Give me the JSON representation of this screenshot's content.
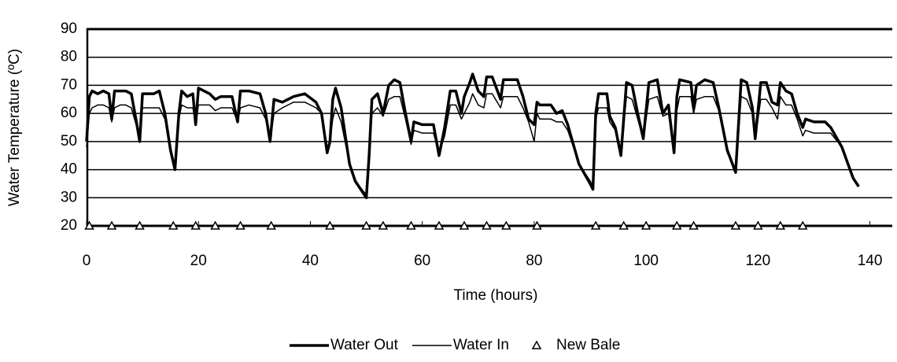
{
  "chart_data": {
    "type": "line",
    "xlabel": "Time (hours)",
    "ylabel": "Water Temperature (ºC)",
    "xlim": [
      0,
      144
    ],
    "ylim": [
      20,
      90
    ],
    "xticks": [
      0,
      20,
      40,
      60,
      80,
      100,
      120,
      140
    ],
    "yticks": [
      20,
      30,
      40,
      50,
      60,
      70,
      80,
      90
    ],
    "grid": true,
    "legend": "bottom",
    "series": [
      {
        "name": "Water Out",
        "color": "#000000",
        "width": 3.5,
        "x": [
          0,
          0.5,
          1,
          2,
          3,
          4,
          4.5,
          5,
          6,
          7,
          8,
          9,
          9.5,
          10,
          12,
          13,
          14,
          15,
          15.8,
          16.5,
          17,
          18,
          19,
          19.5,
          20,
          22,
          23,
          24,
          26,
          27,
          27.5,
          29,
          31,
          32,
          32.8,
          33.5,
          35,
          37,
          39,
          41,
          42,
          43,
          43.5,
          44,
          44.5,
          45.5,
          47,
          48,
          50,
          50.5,
          51,
          52,
          53,
          54,
          55,
          56,
          57,
          58,
          58.5,
          60,
          62,
          63,
          64,
          65,
          66,
          67,
          67.5,
          68.5,
          69,
          70,
          71,
          71.5,
          72.5,
          74,
          74.5,
          76,
          77,
          78,
          79,
          80,
          80.5,
          81,
          83,
          84,
          85,
          86,
          88,
          90,
          90.5,
          91,
          91.5,
          93,
          93.5,
          94.5,
          95.5,
          96.5,
          97.5,
          98.5,
          99.5,
          100.5,
          102,
          103,
          104,
          105,
          105.5,
          106,
          108,
          108.5,
          109,
          110.5,
          112,
          113,
          114.5,
          116,
          117,
          118,
          119,
          119.5,
          120.5,
          121.5,
          122.5,
          123.5,
          124,
          125,
          126,
          127,
          128,
          128.5,
          130,
          132,
          133,
          135,
          137,
          138
        ],
        "values": [
          50,
          66,
          68,
          67,
          68,
          67,
          58,
          68,
          68,
          68,
          67,
          56,
          50,
          67,
          67,
          68,
          60,
          47,
          40,
          60,
          68,
          66,
          67,
          56,
          69,
          67,
          65,
          66,
          66,
          57,
          68,
          68,
          67,
          60,
          50,
          65,
          64,
          66,
          67,
          64,
          60,
          46,
          50,
          65,
          69,
          62,
          42,
          36,
          30,
          45,
          65,
          67,
          60,
          70,
          72,
          71,
          60,
          50,
          57,
          56,
          56,
          45,
          55,
          68,
          68,
          60,
          66,
          71,
          74,
          68,
          66,
          73,
          73,
          65,
          72,
          72,
          72,
          66,
          58,
          56,
          64,
          63,
          63,
          60,
          61,
          56,
          42,
          35,
          33,
          60,
          67,
          67,
          59,
          55,
          45,
          71,
          70,
          60,
          51,
          71,
          72,
          60,
          63,
          46,
          66,
          72,
          71,
          62,
          70,
          72,
          71,
          62,
          47,
          39,
          72,
          71,
          62,
          51,
          71,
          71,
          64,
          63,
          71,
          68,
          67,
          60,
          55,
          58,
          57,
          57,
          55,
          48,
          37,
          34
        ]
      },
      {
        "name": "Water In",
        "color": "#000000",
        "width": 1.5,
        "x": [
          0,
          0.5,
          1,
          2,
          3,
          4,
          4.5,
          5,
          6,
          7,
          8,
          9,
          9.5,
          10,
          12,
          13,
          14,
          15,
          15.8,
          16.5,
          17,
          18,
          19,
          19.5,
          20,
          22,
          23,
          24,
          26,
          27,
          27.5,
          29,
          31,
          32,
          32.8,
          33.5,
          35,
          37,
          39,
          41,
          42,
          43,
          43.5,
          44,
          44.5,
          45.5,
          47,
          48,
          50,
          50.5,
          51,
          52,
          53,
          54,
          55,
          56,
          57,
          58,
          58.5,
          60,
          62,
          63,
          64,
          65,
          66,
          67,
          67.5,
          68.5,
          69,
          70,
          71,
          71.5,
          72.5,
          74,
          74.5,
          76,
          77,
          78,
          79,
          80,
          80.5,
          81,
          83,
          84,
          85,
          86,
          88,
          90,
          90.5,
          91,
          91.5,
          93,
          93.5,
          94.5,
          95.5,
          96.5,
          97.5,
          98.5,
          99.5,
          100.5,
          102,
          103,
          104,
          105,
          105.5,
          106,
          108,
          108.5,
          109,
          110.5,
          112,
          113,
          114.5,
          116,
          117,
          118,
          119,
          119.5,
          120.5,
          121.5,
          122.5,
          123.5,
          124,
          125,
          126,
          127,
          128,
          128.5,
          130,
          132,
          133,
          135,
          137,
          138
        ],
        "values": [
          48,
          60,
          62,
          63,
          63,
          62,
          57,
          62,
          63,
          63,
          62,
          55,
          50,
          62,
          62,
          62,
          58,
          46,
          41,
          58,
          63,
          62,
          62,
          56,
          63,
          63,
          61,
          62,
          62,
          57,
          62,
          63,
          62,
          58,
          50,
          60,
          62,
          64,
          64,
          62,
          60,
          48,
          50,
          58,
          62,
          57,
          42,
          36,
          31,
          44,
          60,
          62,
          59,
          65,
          66,
          66,
          58,
          49,
          54,
          53,
          53,
          46,
          52,
          63,
          63,
          58,
          60,
          64,
          67,
          63,
          62,
          67,
          67,
          62,
          66,
          66,
          66,
          62,
          57,
          50,
          60,
          58,
          58,
          57,
          57,
          54,
          42,
          36,
          34,
          58,
          62,
          62,
          57,
          54,
          46,
          66,
          65,
          58,
          51,
          65,
          66,
          59,
          60,
          46,
          61,
          66,
          66,
          60,
          65,
          66,
          66,
          61,
          46,
          40,
          66,
          65,
          60,
          51,
          65,
          65,
          62,
          58,
          66,
          63,
          63,
          58,
          52,
          54,
          53,
          53,
          53,
          48,
          37,
          34
        ]
      },
      {
        "name": "New Bale",
        "color": "#000000",
        "marker": "triangle",
        "x": [
          0.5,
          4.5,
          9.5,
          15.5,
          19.5,
          23,
          27.5,
          33,
          43.5,
          50,
          53,
          58,
          63,
          67.5,
          71.5,
          75,
          80.5,
          91,
          96,
          100,
          105.5,
          108.5,
          116,
          120,
          124,
          128
        ],
        "values": [
          20,
          20,
          20,
          20,
          20,
          20,
          20,
          20,
          20,
          20,
          20,
          20,
          20,
          20,
          20,
          20,
          20,
          20,
          20,
          20,
          20,
          20,
          20,
          20,
          20,
          20
        ]
      }
    ]
  }
}
